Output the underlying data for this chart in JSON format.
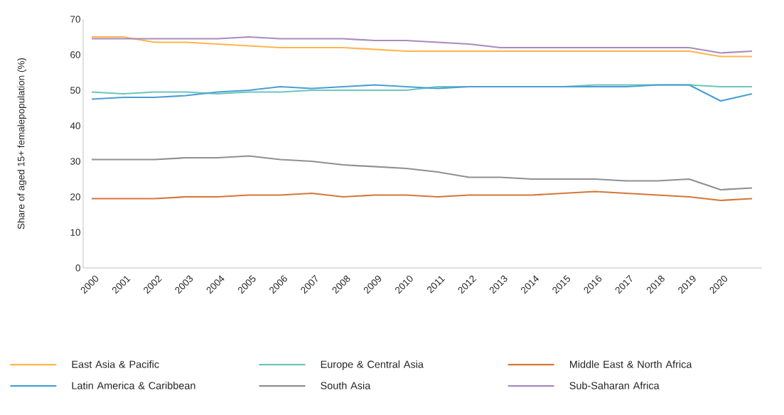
{
  "chart_data": {
    "type": "line",
    "ylabel": "Share of aged 15+ femalepopulation (%)",
    "categories": [
      "2000",
      "2001",
      "2002",
      "2003",
      "2004",
      "2005",
      "2006",
      "2007",
      "2008",
      "2009",
      "2010",
      "2011",
      "2012",
      "2013",
      "2014",
      "2015",
      "2016",
      "2017",
      "2018",
      "2019",
      "2020",
      null
    ],
    "series": [
      {
        "name": "East Asia & Pacific",
        "color": "#ffb54d",
        "values": [
          65,
          65,
          63.5,
          63.5,
          63,
          62.5,
          62,
          62,
          62,
          61.5,
          61,
          61,
          61,
          61,
          61,
          61,
          61,
          61,
          61,
          61,
          59.5,
          59.5
        ]
      },
      {
        "name": "Europe & Central Asia",
        "color": "#6cc5bf",
        "values": [
          49.5,
          49,
          49.5,
          49.5,
          49,
          49.5,
          49.5,
          50,
          50,
          50,
          50,
          51,
          51,
          51,
          51,
          51,
          51.5,
          51.5,
          51.5,
          51.5,
          51,
          51
        ]
      },
      {
        "name": "Middle East & North Africa",
        "color": "#d4773a",
        "values": [
          19.5,
          19.5,
          19.5,
          20,
          20,
          20.5,
          20.5,
          21,
          20,
          20.5,
          20.5,
          20,
          20.5,
          20.5,
          20.5,
          21,
          21.5,
          21,
          20.5,
          20,
          19,
          19.5
        ]
      },
      {
        "name": "Latin America & Caribbean",
        "color": "#4a9fd4",
        "values": [
          47.5,
          48,
          48,
          48.5,
          49.5,
          50,
          51,
          50.5,
          51,
          51.5,
          51,
          50.5,
          51,
          51,
          51,
          51,
          51,
          51,
          51.5,
          51.5,
          47,
          49
        ]
      },
      {
        "name": "South Asia",
        "color": "#909090",
        "values": [
          30.5,
          30.5,
          30.5,
          31,
          31,
          31.5,
          30.5,
          30,
          29,
          28.5,
          28,
          27,
          25.5,
          25.5,
          25,
          25,
          25,
          24.5,
          24.5,
          25,
          22,
          22.5
        ]
      },
      {
        "name": "Sub-Saharan Africa",
        "color": "#a98bbd",
        "values": [
          64.5,
          64.5,
          64.5,
          64.5,
          64.5,
          65,
          64.5,
          64.5,
          64.5,
          64,
          64,
          63.5,
          63,
          62,
          62,
          62,
          62,
          62,
          62,
          62,
          60.5,
          61
        ]
      }
    ],
    "ylim": [
      0,
      70
    ],
    "yticks": [
      0,
      10,
      20,
      30,
      40,
      50,
      60,
      70
    ],
    "grid": false,
    "legend": "bottom",
    "marker": "none",
    "line_style": "solid"
  }
}
